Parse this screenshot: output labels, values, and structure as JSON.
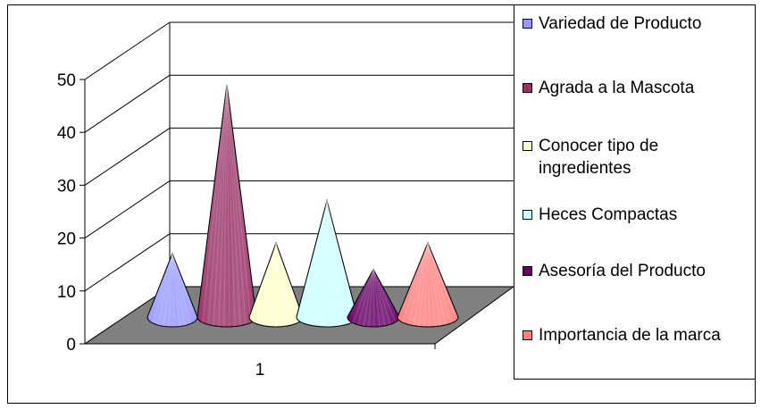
{
  "chart_data": {
    "type": "bar",
    "subtype": "3d-cone",
    "categories": [
      "1"
    ],
    "ylim": [
      0,
      50
    ],
    "yticks": [
      "0",
      "10",
      "20",
      "30",
      "40",
      "50"
    ],
    "grid": true,
    "legend_position": "right",
    "series": [
      {
        "name": "Variedad de Producto",
        "values": [
          12
        ],
        "color": "#9999ff"
      },
      {
        "name": "Agrada a la Mascota",
        "values": [
          44
        ],
        "color": "#993366"
      },
      {
        "name": "Conocer tipo de ingredientes",
        "values": [
          14
        ],
        "color": "#ffffcc"
      },
      {
        "name": "Heces Compactas",
        "values": [
          22
        ],
        "color": "#ccffff"
      },
      {
        "name": "Asesoría del Producto",
        "values": [
          9
        ],
        "color": "#660066"
      },
      {
        "name": "Importancia de la marca",
        "values": [
          14
        ],
        "color": "#ff8080"
      }
    ]
  }
}
